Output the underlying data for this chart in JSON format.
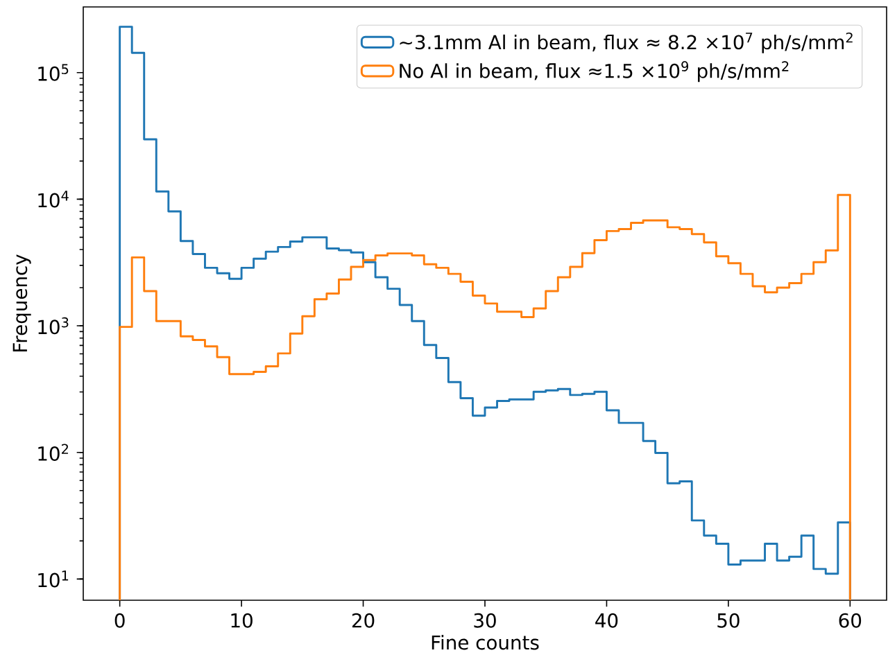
{
  "chart_data": {
    "type": "histogram",
    "xlabel": "Fine counts",
    "ylabel": "Frequency",
    "bins": [
      0,
      1,
      2,
      3,
      4,
      5,
      6,
      7,
      8,
      9,
      10,
      11,
      12,
      13,
      14,
      15,
      16,
      17,
      18,
      19,
      20,
      21,
      22,
      23,
      24,
      25,
      26,
      27,
      28,
      29,
      30,
      31,
      32,
      33,
      34,
      35,
      36,
      37,
      38,
      39,
      40,
      41,
      42,
      43,
      44,
      45,
      46,
      47,
      48,
      49,
      50,
      51,
      52,
      53,
      54,
      55,
      56,
      57,
      58,
      59,
      60
    ],
    "series": [
      {
        "name": "~3.1mm Al in beam, flux  ≈  8.2 ×10$^{7}$ ph/s/mm$^{2}$",
        "color": "#1f77b4",
        "values": [
          230000,
          143000,
          29700,
          11500,
          8000,
          4670,
          3690,
          2870,
          2600,
          2350,
          2870,
          3390,
          3850,
          4190,
          4630,
          5000,
          5000,
          4080,
          3950,
          3790,
          3180,
          2420,
          1960,
          1460,
          1090,
          705,
          557,
          359,
          268,
          195,
          226,
          255,
          262,
          262,
          301,
          309,
          317,
          284,
          290,
          301,
          215,
          171,
          171,
          123,
          99,
          57,
          59,
          29,
          22,
          19,
          13,
          14,
          14,
          19,
          14,
          15,
          22,
          12,
          11,
          28
        ]
      },
      {
        "name": "No Al in beam, flux  ≈1.5 ×10$^{9}$ ph/s/mm$^{2}$",
        "color": "#ff7f0e",
        "values": [
          980,
          3470,
          1880,
          1090,
          1090,
          826,
          773,
          687,
          565,
          415,
          415,
          433,
          478,
          605,
          869,
          1190,
          1620,
          1800,
          2320,
          2920,
          3300,
          3600,
          3730,
          3730,
          3600,
          3060,
          2870,
          2570,
          2230,
          1730,
          1500,
          1290,
          1290,
          1170,
          1370,
          1880,
          2420,
          2920,
          3750,
          4750,
          5600,
          5800,
          6500,
          6800,
          6800,
          6000,
          5800,
          5300,
          4550,
          3540,
          3120,
          2570,
          2050,
          1840,
          2000,
          2170,
          2570,
          3180,
          3940,
          10800
        ]
      }
    ],
    "xlim": [
      -3,
      63
    ],
    "ylim": [
      6.8,
      330000
    ],
    "log": true,
    "xticks": [
      0,
      10,
      20,
      30,
      40,
      50,
      60
    ],
    "yticks": [
      {
        "value": 10,
        "label": "10$^{1}$"
      },
      {
        "value": 100,
        "label": "10$^{2}$"
      },
      {
        "value": 1000,
        "label": "10$^{3}$"
      },
      {
        "value": 10000,
        "label": "10$^{4}$"
      },
      {
        "value": 100000,
        "label": "10$^{5}$"
      }
    ],
    "legend": "top right",
    "marker": "none",
    "line_style": "solid"
  }
}
